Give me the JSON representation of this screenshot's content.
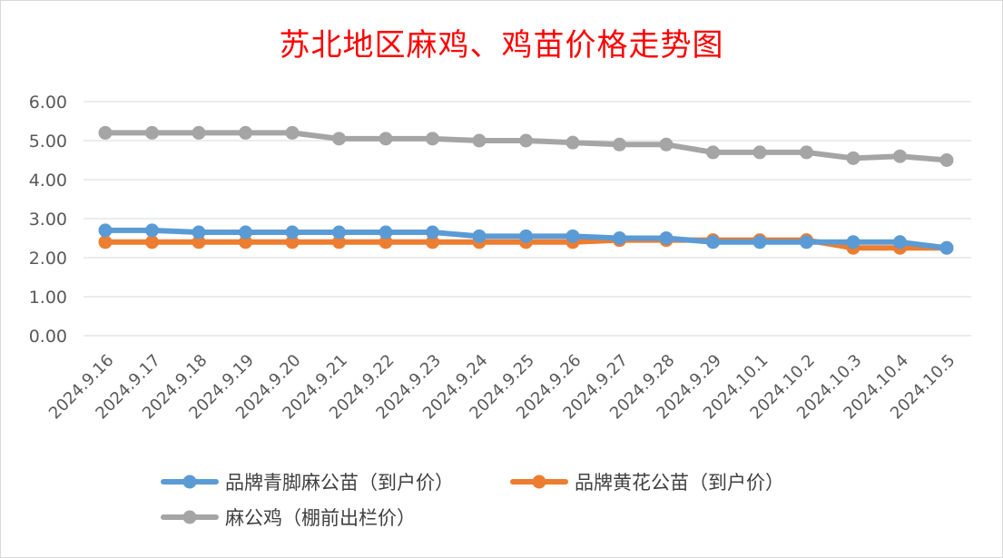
{
  "chart_data": {
    "type": "line",
    "title": "苏北地区麻鸡、鸡苗价格走势图",
    "xlabel": "",
    "ylabel": "",
    "ylim": [
      0,
      6
    ],
    "yticks": [
      "0.00",
      "1.00",
      "2.00",
      "3.00",
      "4.00",
      "5.00",
      "6.00"
    ],
    "grid": true,
    "legend_position": "bottom",
    "categories": [
      "2024.9.16",
      "2024.9.17",
      "2024.9.18",
      "2024.9.19",
      "2024.9.20",
      "2024.9.21",
      "2024.9.22",
      "2024.9.23",
      "2024.9.24",
      "2024.9.25",
      "2024.9.26",
      "2024.9.27",
      "2024.9.28",
      "2024.9.29",
      "2024.10.1",
      "2024.10.2",
      "2024.10.3",
      "2024.10.4",
      "2024.10.5"
    ],
    "series": [
      {
        "name": "品牌青脚麻公苗（到户价）",
        "color": "#5b9bd5",
        "values": [
          2.7,
          2.7,
          2.65,
          2.65,
          2.65,
          2.65,
          2.65,
          2.65,
          2.55,
          2.55,
          2.55,
          2.5,
          2.5,
          2.4,
          2.4,
          2.4,
          2.4,
          2.4,
          2.25
        ]
      },
      {
        "name": "品牌黄花公苗（到户价）",
        "color": "#ed7d31",
        "values": [
          2.4,
          2.4,
          2.4,
          2.4,
          2.4,
          2.4,
          2.4,
          2.4,
          2.4,
          2.4,
          2.4,
          2.45,
          2.45,
          2.45,
          2.45,
          2.45,
          2.25,
          2.25,
          2.25
        ]
      },
      {
        "name": "麻公鸡（棚前出栏价）",
        "color": "#a5a5a5",
        "values": [
          5.2,
          5.2,
          5.2,
          5.2,
          5.2,
          5.05,
          5.05,
          5.05,
          5.0,
          5.0,
          4.95,
          4.9,
          4.9,
          4.7,
          4.7,
          4.7,
          4.55,
          4.6,
          4.5
        ]
      }
    ]
  }
}
